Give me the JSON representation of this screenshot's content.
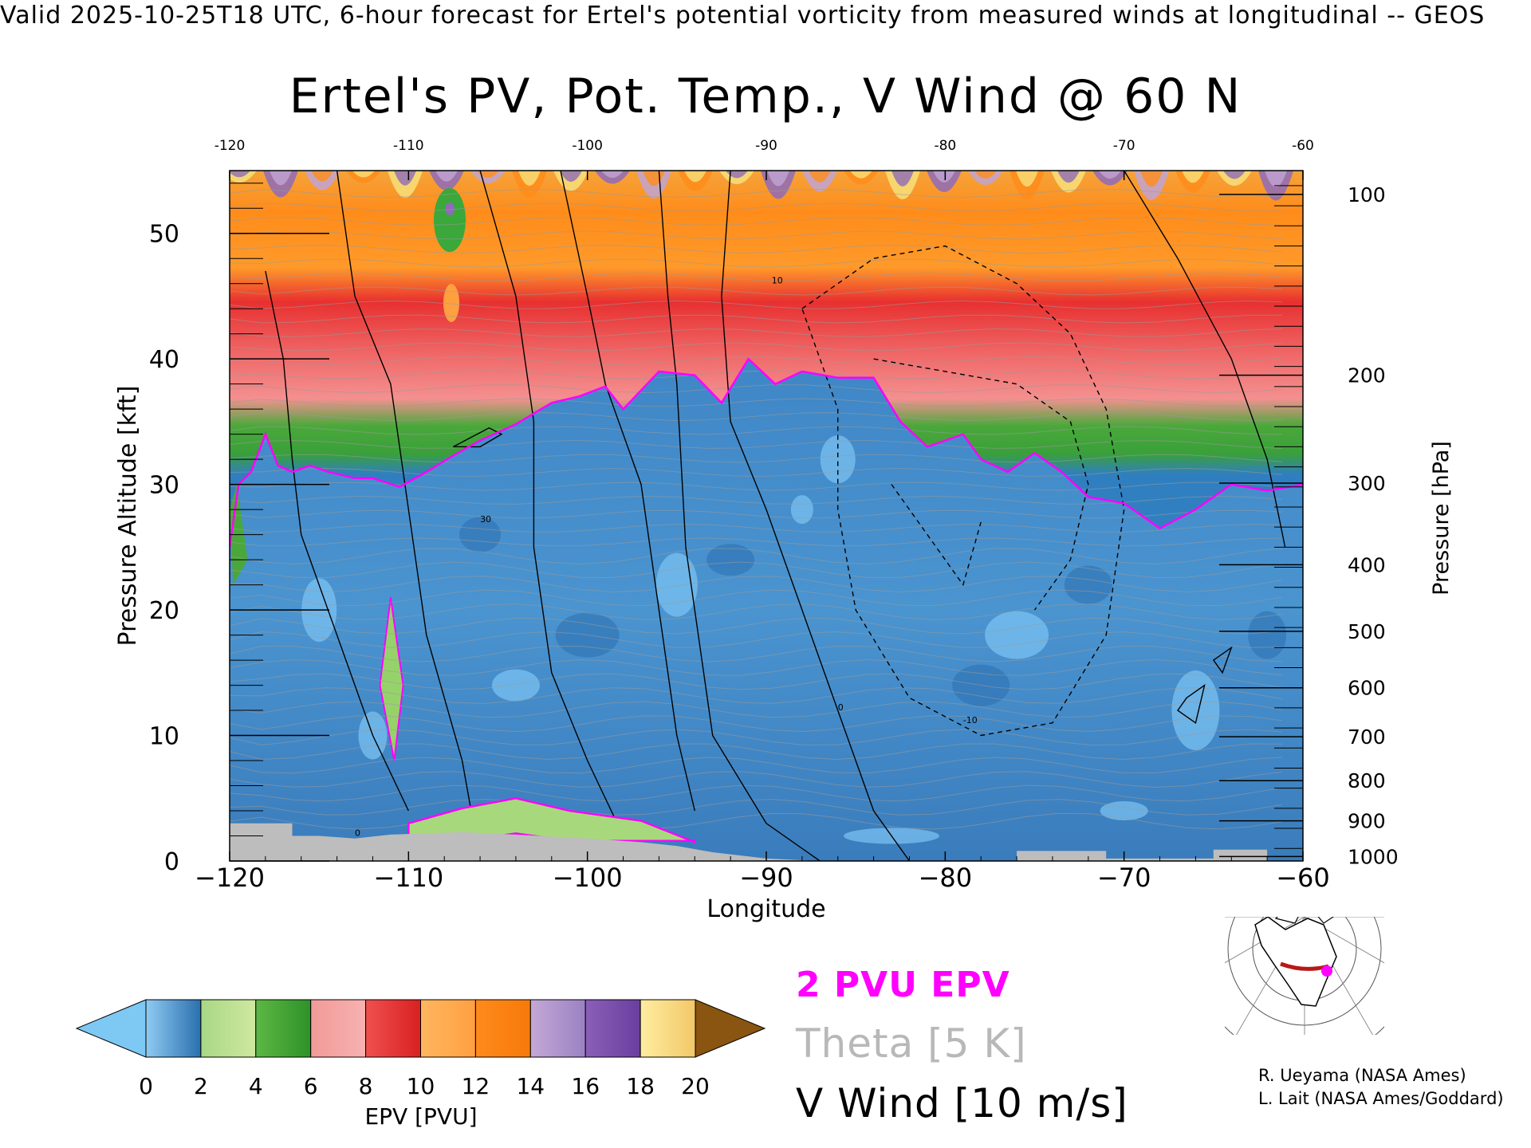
{
  "header": "Valid 2025-10-25T18 UTC, 6-hour forecast for Ertel's potential vorticity from measured winds at longitudinal -- GEOS",
  "title": "Ertel's PV, Pot. Temp., V Wind @ 60 N",
  "chart_data": {
    "type": "heatmap",
    "title": "Ertel's PV, Pot. Temp., V Wind @ 60 N",
    "xlabel": "Longitude",
    "ylabel": "Pressure Altitude [kft]",
    "y2label": "Pressure [hPa]",
    "xlim": [
      -120,
      -60
    ],
    "ylim": [
      0,
      55
    ],
    "x_ticks": [
      -120,
      -110,
      -100,
      -90,
      -80,
      -70,
      -60
    ],
    "x_tick_labels": [
      "−120",
      "−110",
      "−100",
      "−90",
      "−80",
      "−70",
      "−60"
    ],
    "top_ticks": [
      "-120",
      "-110",
      "-100",
      "-90",
      "-80",
      "-70",
      "-60"
    ],
    "y_ticks": [
      0,
      10,
      20,
      30,
      40,
      50
    ],
    "pressure_ticks": [
      {
        "hPa": "100",
        "kft": 53.1
      },
      {
        "hPa": "200",
        "kft": 38.7
      },
      {
        "hPa": "300",
        "kft": 30.1
      },
      {
        "hPa": "400",
        "kft": 23.6
      },
      {
        "hPa": "500",
        "kft": 18.3
      },
      {
        "hPa": "600",
        "kft": 13.8
      },
      {
        "hPa": "700",
        "kft": 9.9
      },
      {
        "hPa": "800",
        "kft": 6.4
      },
      {
        "hPa": "900",
        "kft": 3.2
      },
      {
        "hPa": "1000",
        "kft": 0.36
      }
    ],
    "tropopause_2pvu_kft": [
      [
        -120,
        25
      ],
      [
        -119.5,
        30
      ],
      [
        -118.8,
        31
      ],
      [
        -118,
        34
      ],
      [
        -117.3,
        31.5
      ],
      [
        -116.5,
        31
      ],
      [
        -115.5,
        31.5
      ],
      [
        -114.5,
        31
      ],
      [
        -113,
        30.5
      ],
      [
        -112,
        30.5
      ],
      [
        -110.5,
        29.8
      ],
      [
        -109,
        31
      ],
      [
        -107.5,
        32.3
      ],
      [
        -106,
        33.5
      ],
      [
        -104,
        34.8
      ],
      [
        -102,
        36.5
      ],
      [
        -100.5,
        37
      ],
      [
        -99,
        37.8
      ],
      [
        -98,
        36
      ],
      [
        -96,
        39
      ],
      [
        -94,
        38.7
      ],
      [
        -92.5,
        36.5
      ],
      [
        -91,
        40
      ],
      [
        -89.5,
        38
      ],
      [
        -88,
        39
      ],
      [
        -86,
        38.5
      ],
      [
        -84,
        38.5
      ],
      [
        -82.5,
        35
      ],
      [
        -81,
        33
      ],
      [
        -79,
        34
      ],
      [
        -78,
        32
      ],
      [
        -76.5,
        31
      ],
      [
        -75,
        32.5
      ],
      [
        -73.5,
        31
      ],
      [
        -72,
        29
      ],
      [
        -70,
        28.5
      ],
      [
        -68,
        26.5
      ],
      [
        -66,
        28
      ],
      [
        -64,
        30
      ],
      [
        -62,
        29.5
      ],
      [
        -60,
        30
      ]
    ],
    "surface_pv_lens_kft": [
      [
        -110,
        3
      ],
      [
        -107,
        4.2
      ],
      [
        -104,
        5
      ],
      [
        -101,
        4
      ],
      [
        -97,
        3.2
      ],
      [
        -94,
        1.5
      ]
    ],
    "pressure_fill_colors": [
      "#3a8ad0",
      "#7ec4f4",
      "#96d26a",
      "#e03838"
    ],
    "colorbar": {
      "label": "EPV [PVU]",
      "tick_labels": [
        "0",
        "2",
        "4",
        "6",
        "8",
        "10",
        "12",
        "14",
        "16",
        "18",
        "20"
      ],
      "under_color": "#7ec8f4",
      "over_color": "#8a5510",
      "segments": [
        [
          "#8fcbf2",
          "#2a6fae"
        ],
        [
          "#a8d884",
          "#cfe8a0"
        ],
        [
          "#5cb844",
          "#2e9128"
        ],
        [
          "#f29a98",
          "#f6b2b0"
        ],
        [
          "#f05050",
          "#d92020"
        ],
        [
          "#ffb660",
          "#ffa040"
        ],
        [
          "#ff8a1c",
          "#f67a0a"
        ],
        [
          "#c4a8d6",
          "#9a82c2"
        ],
        [
          "#8a5fb8",
          "#6a3e9e"
        ],
        [
          "#ffeda0",
          "#f2c868"
        ]
      ]
    },
    "legend": [
      "2 PVU EPV",
      "Theta [5 K]",
      "V Wind [10 m/s]"
    ],
    "legend_colors": {
      "epv": "#ff00ff",
      "theta": "#b8b8b8",
      "wind": "#000000"
    },
    "annotations": [
      "10",
      "0",
      "-10",
      "30"
    ]
  },
  "credits": [
    "R. Ueyama (NASA Ames)",
    "L. Lait (NASA Ames/Goddard)"
  ]
}
